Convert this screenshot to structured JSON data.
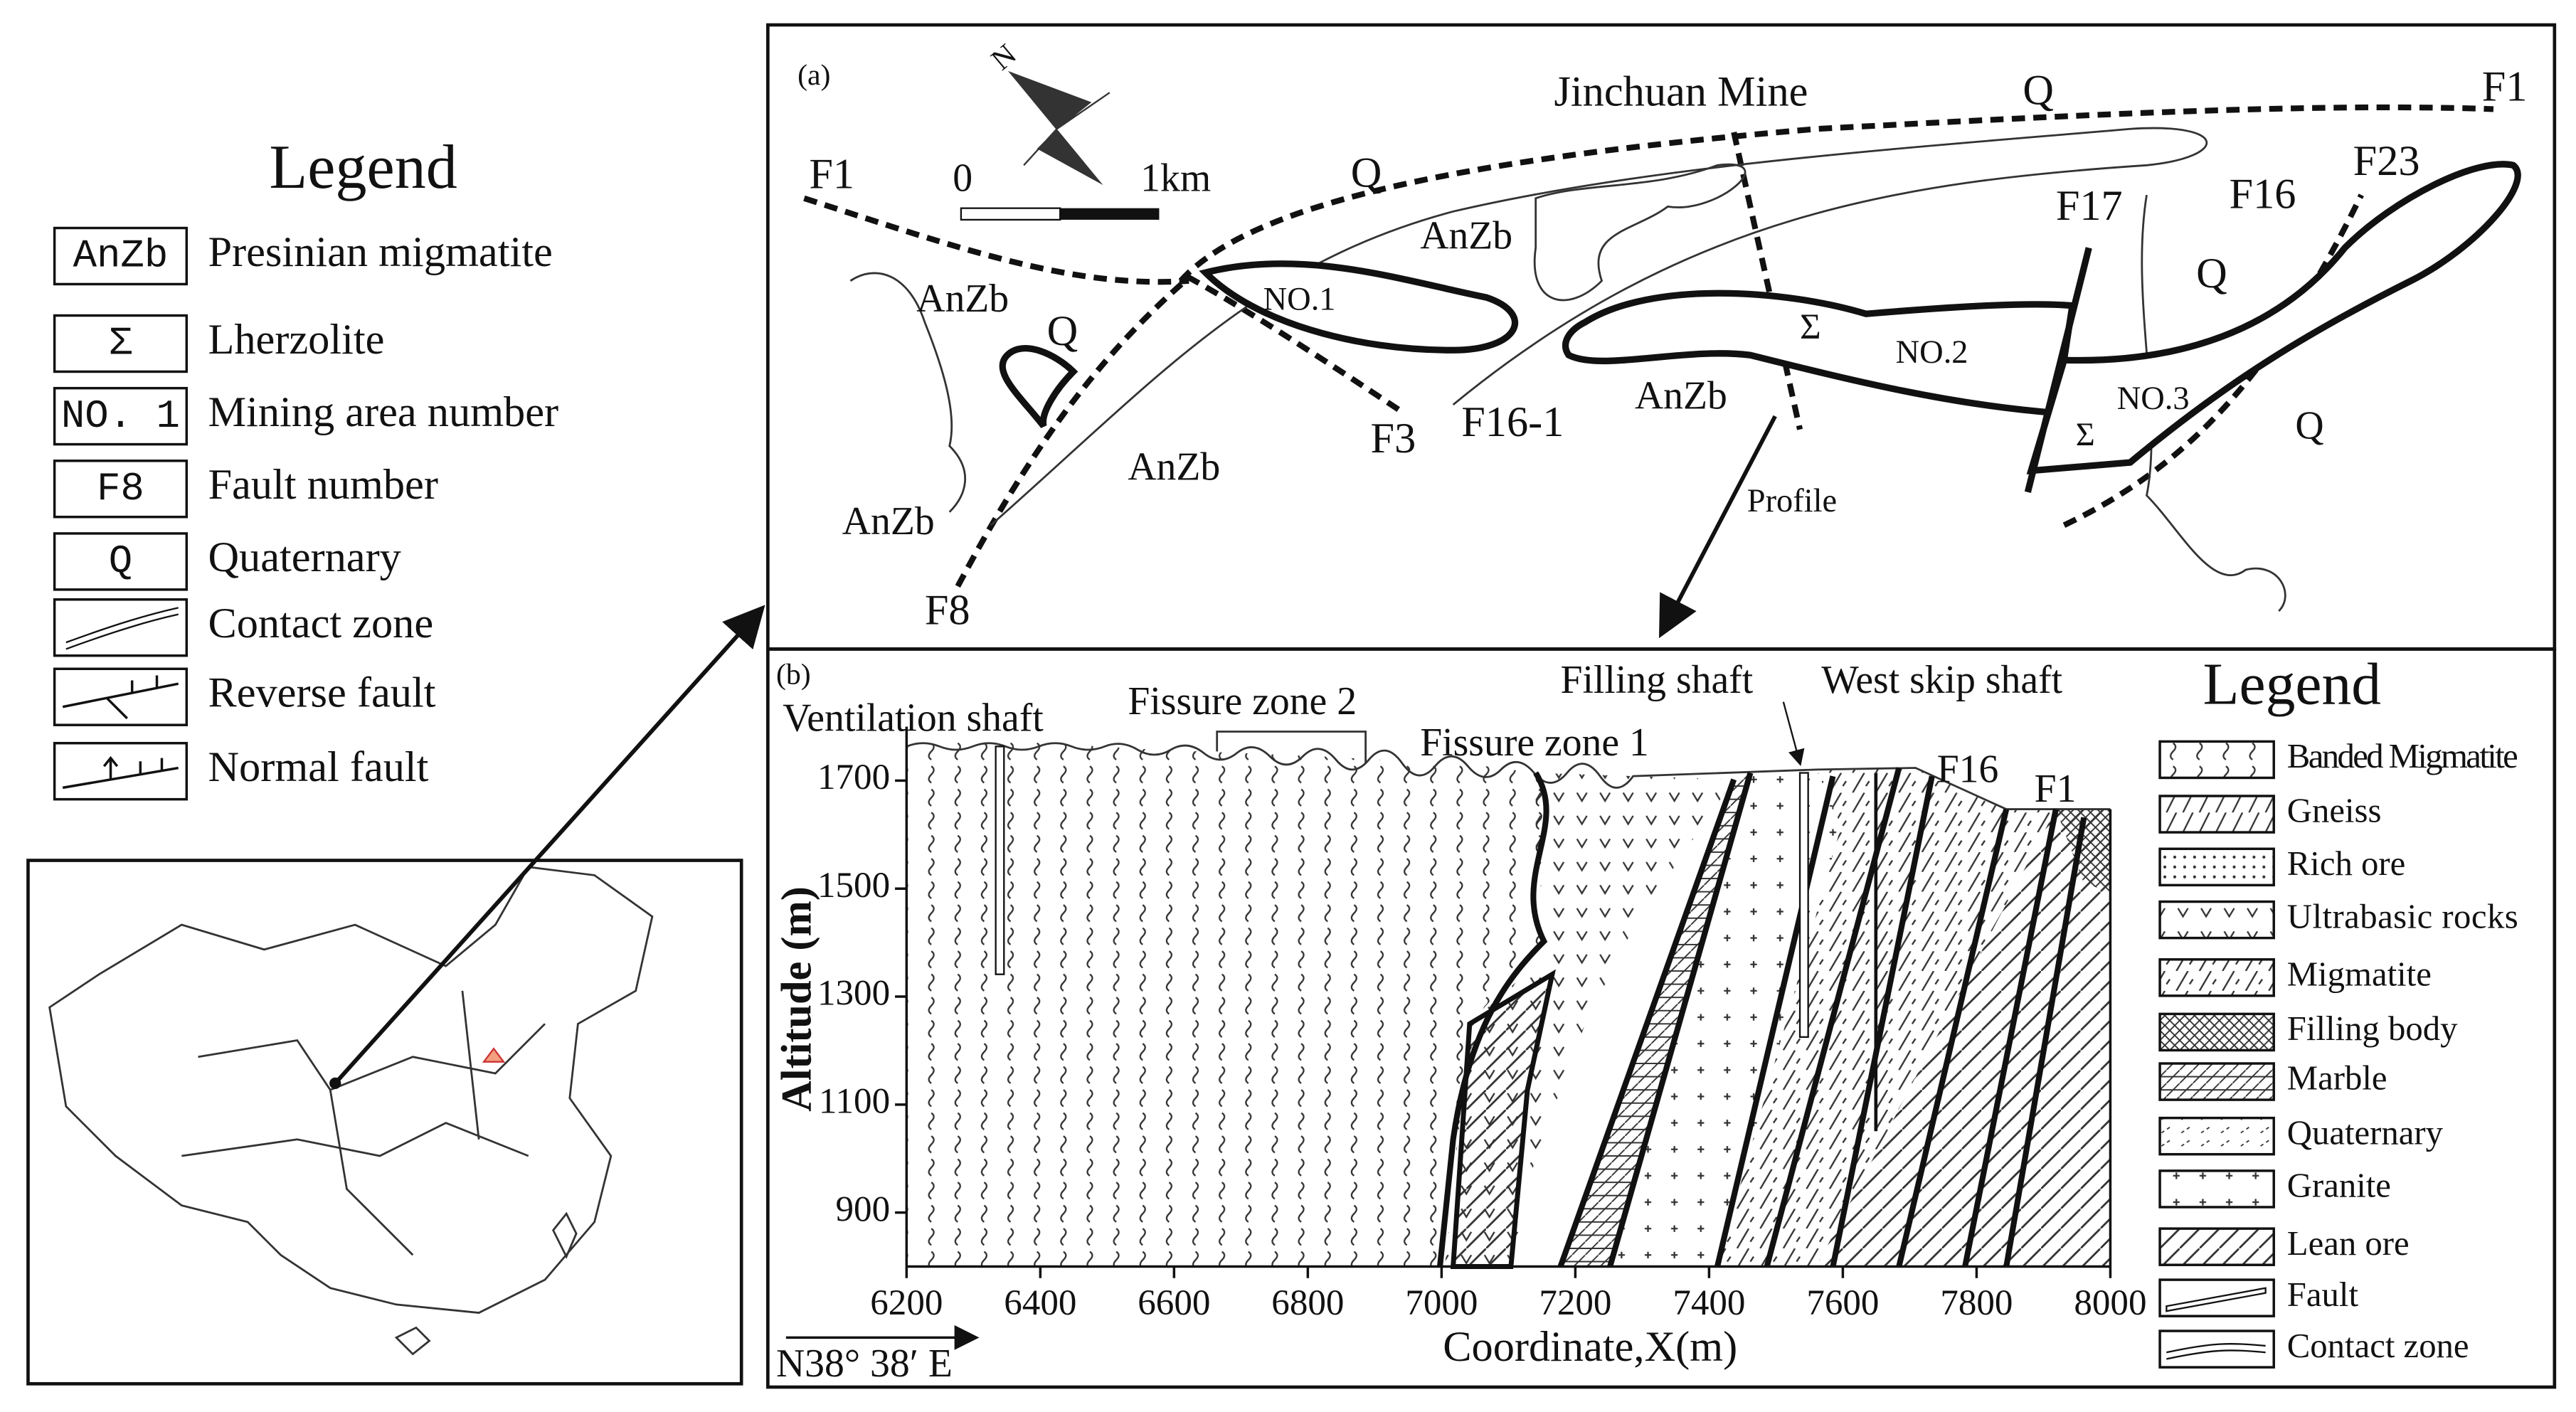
{
  "legend_left": {
    "title": "Legend",
    "items": [
      {
        "symbol": "AnZb",
        "label": "Presinian migmatite"
      },
      {
        "symbol": "Σ",
        "label": "Lherzolite"
      },
      {
        "symbol": "NO. 1",
        "label": "Mining area number"
      },
      {
        "symbol": "F8",
        "label": "Fault number"
      },
      {
        "symbol": "Q",
        "label": "Quaternary"
      },
      {
        "label": "Contact zone"
      },
      {
        "label": "Reverse fault"
      },
      {
        "label": "Normal fault"
      }
    ]
  },
  "map_a": {
    "panel": "(a)",
    "title": "Jinchuan Mine",
    "north": "N",
    "scale_start": "0",
    "scale_end": "1km",
    "labels": [
      "F1",
      "Q",
      "AnZb",
      "NO.1",
      "F3",
      "F16-1",
      "AnZb",
      "Σ",
      "NO.2",
      "F17",
      "F16",
      "F23",
      "F1",
      "Q",
      "Q",
      "NO.3",
      "Σ",
      "Profile",
      "F8",
      "AnZb",
      "AnZb",
      "AnZb",
      "Q",
      "Q"
    ]
  },
  "profile_b": {
    "panel": "(b)",
    "x_label": "Coordinate,X(m)",
    "y_label": "Altitude (m)",
    "xlim": [
      6200,
      8000
    ],
    "ylim": [
      800,
      1800
    ],
    "xticks": [
      6200,
      6400,
      6600,
      6800,
      7000,
      7200,
      7400,
      7600,
      7800,
      8000
    ],
    "yticks": [
      900,
      1100,
      1300,
      1500,
      1700
    ],
    "labels": [
      "Ventilation shaft",
      "Fissure zone 2",
      "Fissure zone 1",
      "Filling shaft",
      "West skip shaft",
      "F16",
      "F1"
    ],
    "coordinate": "N38° 38′ E"
  },
  "legend_right": {
    "title": "Legend",
    "items": [
      "Banded Migmatite",
      "Gneiss",
      "Rich ore",
      "Ultrabasic rocks",
      "Migmatite",
      "Filling body",
      "Marble",
      "Quaternary",
      "Granite",
      "Lean ore",
      "Fault",
      "Contact zone"
    ]
  }
}
